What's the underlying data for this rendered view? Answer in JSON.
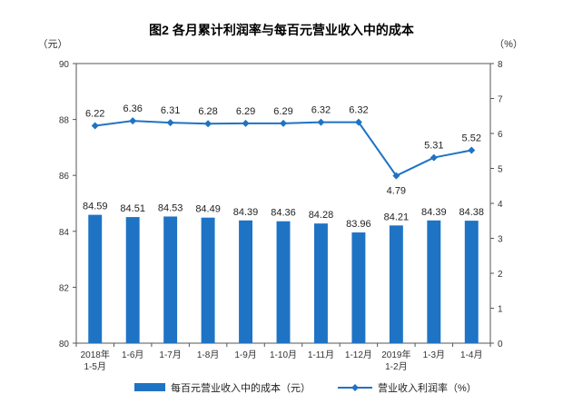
{
  "chart_data": {
    "type": "bar+line",
    "title": "图2 各月累计利润率与每百元营业收入中的成本",
    "left_unit": "（元）",
    "right_unit": "（%）",
    "categories": [
      [
        "2018年",
        "1-5月"
      ],
      [
        "1-6月"
      ],
      [
        "1-7月"
      ],
      [
        "1-8月"
      ],
      [
        "1-9月"
      ],
      [
        "1-10月"
      ],
      [
        "1-11月"
      ],
      [
        "1-12月"
      ],
      [
        "2019年",
        "1-2月"
      ],
      [
        "1-3月"
      ],
      [
        "1-4月"
      ]
    ],
    "left_axis": {
      "min": 80,
      "max": 90,
      "ticks": [
        80,
        82,
        84,
        86,
        88,
        90
      ]
    },
    "right_axis": {
      "min": 0,
      "max": 8,
      "ticks": [
        0,
        1,
        2,
        3,
        4,
        5,
        6,
        7,
        8
      ]
    },
    "series": [
      {
        "name": "每百元营业收入中的成本（元）",
        "type": "bar",
        "axis": "left",
        "color": "#1f73c4",
        "values": [
          84.59,
          84.51,
          84.53,
          84.49,
          84.39,
          84.36,
          84.28,
          83.96,
          84.21,
          84.39,
          84.38
        ],
        "labels": [
          "84.59",
          "84.51",
          "84.53",
          "84.49",
          "84.39",
          "84.36",
          "84.28",
          "83.96",
          "84.21",
          "84.39",
          "84.38"
        ]
      },
      {
        "name": "营业收入利润率（%）",
        "type": "line",
        "axis": "right",
        "color": "#1f73c4",
        "values": [
          6.22,
          6.36,
          6.31,
          6.28,
          6.29,
          6.29,
          6.32,
          6.32,
          4.79,
          5.31,
          5.52
        ],
        "labels": [
          "6.22",
          "6.36",
          "6.31",
          "6.28",
          "6.29",
          "6.29",
          "6.32",
          "6.32",
          "4.79",
          "5.31",
          "5.52"
        ]
      }
    ],
    "legend_position": "bottom"
  }
}
